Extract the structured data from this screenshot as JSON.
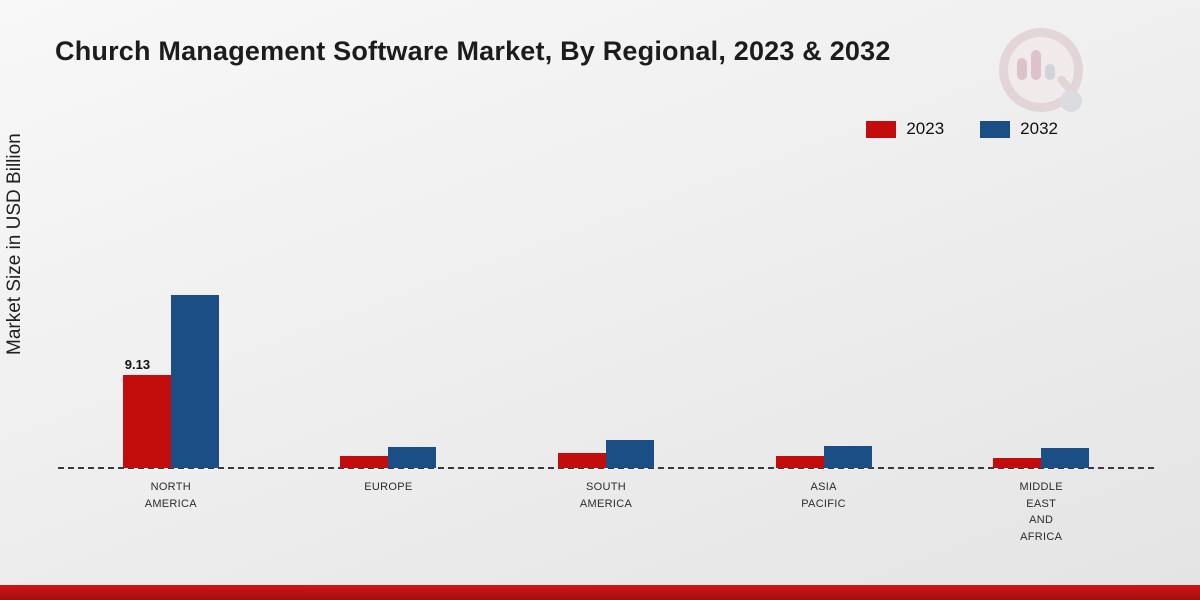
{
  "title": "Church Management Software Market, By Regional, 2023 & 2032",
  "ylabel": "Market Size in USD Billion",
  "colors": {
    "series_2023": "#c30d0d",
    "series_2032": "#1b4e85",
    "baseline": "#3a3a3a",
    "bottom_strip": "#b11010"
  },
  "legend": {
    "position": "top-right",
    "items": [
      {
        "label": "2023",
        "color": "#c30d0d"
      },
      {
        "label": "2032",
        "color": "#1b4e85"
      }
    ]
  },
  "chart_data": {
    "type": "bar",
    "title": "Church Management Software Market, By Regional, 2023 & 2032",
    "xlabel": "",
    "ylabel": "Market Size in USD Billion",
    "ylim": [
      0,
      18
    ],
    "grid": false,
    "legend_position": "top-right",
    "baseline_style": "dashed",
    "categories": [
      [
        "NORTH",
        "AMERICA"
      ],
      [
        "EUROPE"
      ],
      [
        "SOUTH",
        "AMERICA"
      ],
      [
        "ASIA",
        "PACIFIC"
      ],
      [
        "MIDDLE",
        "EAST",
        "AND",
        "AFRICA"
      ]
    ],
    "series": [
      {
        "name": "2023",
        "color": "#c30d0d",
        "values": [
          9.13,
          1.2,
          1.5,
          1.2,
          1.0
        ]
      },
      {
        "name": "2032",
        "color": "#1b4e85",
        "values": [
          17.0,
          2.1,
          2.7,
          2.2,
          2.0
        ]
      }
    ],
    "annotations": [
      {
        "series": "2023",
        "category_index": 0,
        "text": "9.13"
      }
    ]
  }
}
